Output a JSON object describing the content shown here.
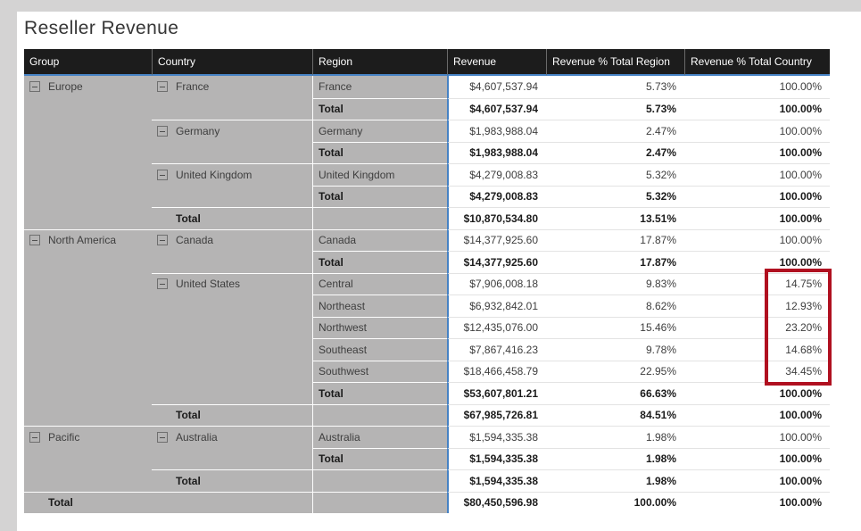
{
  "title": "Reseller Revenue",
  "colors": {
    "page_bg": "#d4d3d3",
    "panel_bg": "#ffffff",
    "header_bg": "#1c1c1c",
    "header_text": "#ffffff",
    "accent_blue": "#4682c4",
    "rowheader_bg": "#b5b4b4",
    "text": "#3e3e3e",
    "text_bold": "#1b1b1b",
    "highlight_red": "#b01020"
  },
  "highlight": {
    "description": "red box annotation around Revenue % Total Country values for United States regions",
    "values_boxed": [
      "14.75%",
      "12.93%",
      "23.20%",
      "14.68%",
      "34.45%"
    ]
  },
  "table": {
    "columns": [
      "Group",
      "Country",
      "Region",
      "Revenue",
      "Revenue % Total Region",
      "Revenue % Total Country"
    ],
    "rows": [
      {
        "g": "Europe",
        "gi": true,
        "c": "France",
        "ci": true,
        "r": "France",
        "v": [
          "$4,607,537.94",
          "5.73%",
          "100.00%"
        ],
        "bold": false,
        "sep": "none",
        "hl": false
      },
      {
        "g": "",
        "gi": false,
        "c": "",
        "ci": false,
        "r": "Total",
        "v": [
          "$4,607,537.94",
          "5.73%",
          "100.00%"
        ],
        "bold": true,
        "sep": "region",
        "hl": false
      },
      {
        "g": "",
        "gi": false,
        "c": "Germany",
        "ci": true,
        "r": "Germany",
        "v": [
          "$1,983,988.04",
          "2.47%",
          "100.00%"
        ],
        "bold": false,
        "sep": "country",
        "hl": false
      },
      {
        "g": "",
        "gi": false,
        "c": "",
        "ci": false,
        "r": "Total",
        "v": [
          "$1,983,988.04",
          "2.47%",
          "100.00%"
        ],
        "bold": true,
        "sep": "region",
        "hl": false
      },
      {
        "g": "",
        "gi": false,
        "c": "United Kingdom",
        "ci": true,
        "r": "United Kingdom",
        "v": [
          "$4,279,008.83",
          "5.32%",
          "100.00%"
        ],
        "bold": false,
        "sep": "country",
        "hl": false
      },
      {
        "g": "",
        "gi": false,
        "c": "",
        "ci": false,
        "r": "Total",
        "v": [
          "$4,279,008.83",
          "5.32%",
          "100.00%"
        ],
        "bold": true,
        "sep": "region",
        "hl": false
      },
      {
        "g": "",
        "gi": false,
        "c": "Total",
        "ci": false,
        "r": "",
        "v": [
          "$10,870,534.80",
          "13.51%",
          "100.00%"
        ],
        "bold": true,
        "sep": "country",
        "hl": false
      },
      {
        "g": "North America",
        "gi": true,
        "c": "Canada",
        "ci": true,
        "r": "Canada",
        "v": [
          "$14,377,925.60",
          "17.87%",
          "100.00%"
        ],
        "bold": false,
        "sep": "group",
        "hl": false
      },
      {
        "g": "",
        "gi": false,
        "c": "",
        "ci": false,
        "r": "Total",
        "v": [
          "$14,377,925.60",
          "17.87%",
          "100.00%"
        ],
        "bold": true,
        "sep": "region",
        "hl": false
      },
      {
        "g": "",
        "gi": false,
        "c": "United States",
        "ci": true,
        "r": "Central",
        "v": [
          "$7,906,008.18",
          "9.83%",
          "14.75%"
        ],
        "bold": false,
        "sep": "country",
        "hl": true
      },
      {
        "g": "",
        "gi": false,
        "c": "",
        "ci": false,
        "r": "Northeast",
        "v": [
          "$6,932,842.01",
          "8.62%",
          "12.93%"
        ],
        "bold": false,
        "sep": "region",
        "hl": true
      },
      {
        "g": "",
        "gi": false,
        "c": "",
        "ci": false,
        "r": "Northwest",
        "v": [
          "$12,435,076.00",
          "15.46%",
          "23.20%"
        ],
        "bold": false,
        "sep": "region",
        "hl": true
      },
      {
        "g": "",
        "gi": false,
        "c": "",
        "ci": false,
        "r": "Southeast",
        "v": [
          "$7,867,416.23",
          "9.78%",
          "14.68%"
        ],
        "bold": false,
        "sep": "region",
        "hl": true
      },
      {
        "g": "",
        "gi": false,
        "c": "",
        "ci": false,
        "r": "Southwest",
        "v": [
          "$18,466,458.79",
          "22.95%",
          "34.45%"
        ],
        "bold": false,
        "sep": "region",
        "hl": true
      },
      {
        "g": "",
        "gi": false,
        "c": "",
        "ci": false,
        "r": "Total",
        "v": [
          "$53,607,801.21",
          "66.63%",
          "100.00%"
        ],
        "bold": true,
        "sep": "region",
        "hl": false
      },
      {
        "g": "",
        "gi": false,
        "c": "Total",
        "ci": false,
        "r": "",
        "v": [
          "$67,985,726.81",
          "84.51%",
          "100.00%"
        ],
        "bold": true,
        "sep": "country",
        "hl": false
      },
      {
        "g": "Pacific",
        "gi": true,
        "c": "Australia",
        "ci": true,
        "r": "Australia",
        "v": [
          "$1,594,335.38",
          "1.98%",
          "100.00%"
        ],
        "bold": false,
        "sep": "group",
        "hl": false
      },
      {
        "g": "",
        "gi": false,
        "c": "",
        "ci": false,
        "r": "Total",
        "v": [
          "$1,594,335.38",
          "1.98%",
          "100.00%"
        ],
        "bold": true,
        "sep": "region",
        "hl": false
      },
      {
        "g": "",
        "gi": false,
        "c": "Total",
        "ci": false,
        "r": "",
        "v": [
          "$1,594,335.38",
          "1.98%",
          "100.00%"
        ],
        "bold": true,
        "sep": "country",
        "hl": false
      },
      {
        "g": "Total",
        "gi": false,
        "c": "",
        "ci": false,
        "r": "",
        "v": [
          "$80,450,596.98",
          "100.00%",
          "100.00%"
        ],
        "bold": true,
        "sep": "group",
        "hl": false
      }
    ]
  }
}
